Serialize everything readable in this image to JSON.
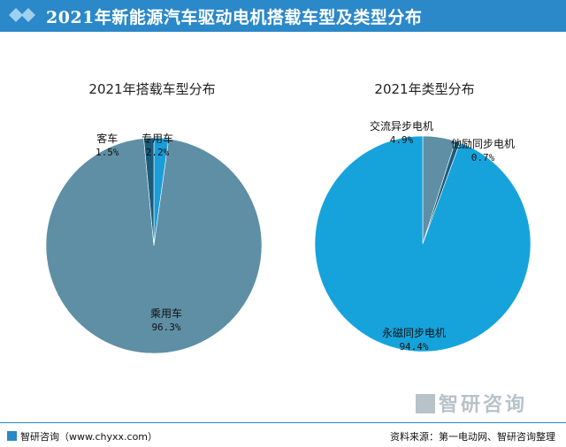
{
  "header": {
    "title": "2021年新能源汽车驱动电机搭载车型及类型分布"
  },
  "chart_data": [
    {
      "type": "pie",
      "title": "2021年搭载车型分布",
      "start_angle_deg": 0,
      "slices": [
        {
          "name": "专用车",
          "value": 2.2,
          "label": "2.2%",
          "color": "#1a9dd8"
        },
        {
          "name": "乘用车",
          "value": 96.3,
          "label": "96.3%",
          "color": "#5f8fa5"
        },
        {
          "name": "客车",
          "value": 1.5,
          "label": "1.5%",
          "color": "#1d5a78"
        }
      ]
    },
    {
      "type": "pie",
      "title": "2021年类型分布",
      "start_angle_deg": 0,
      "slices": [
        {
          "name": "交流异步电机",
          "value": 4.9,
          "label": "4.9%",
          "color": "#5f8fa5"
        },
        {
          "name": "他励同步电机",
          "value": 0.7,
          "label": "0.7%",
          "color": "#1d5a78"
        },
        {
          "name": "永磁同步电机",
          "value": 94.4,
          "label": "94.4%",
          "color": "#16a3dc"
        }
      ]
    }
  ],
  "brand": {
    "text": "智研咨询"
  },
  "footer": {
    "left": "智研咨询（www.chyxx.com）",
    "right": "资料来源：第一电动网、智研咨询整理"
  }
}
